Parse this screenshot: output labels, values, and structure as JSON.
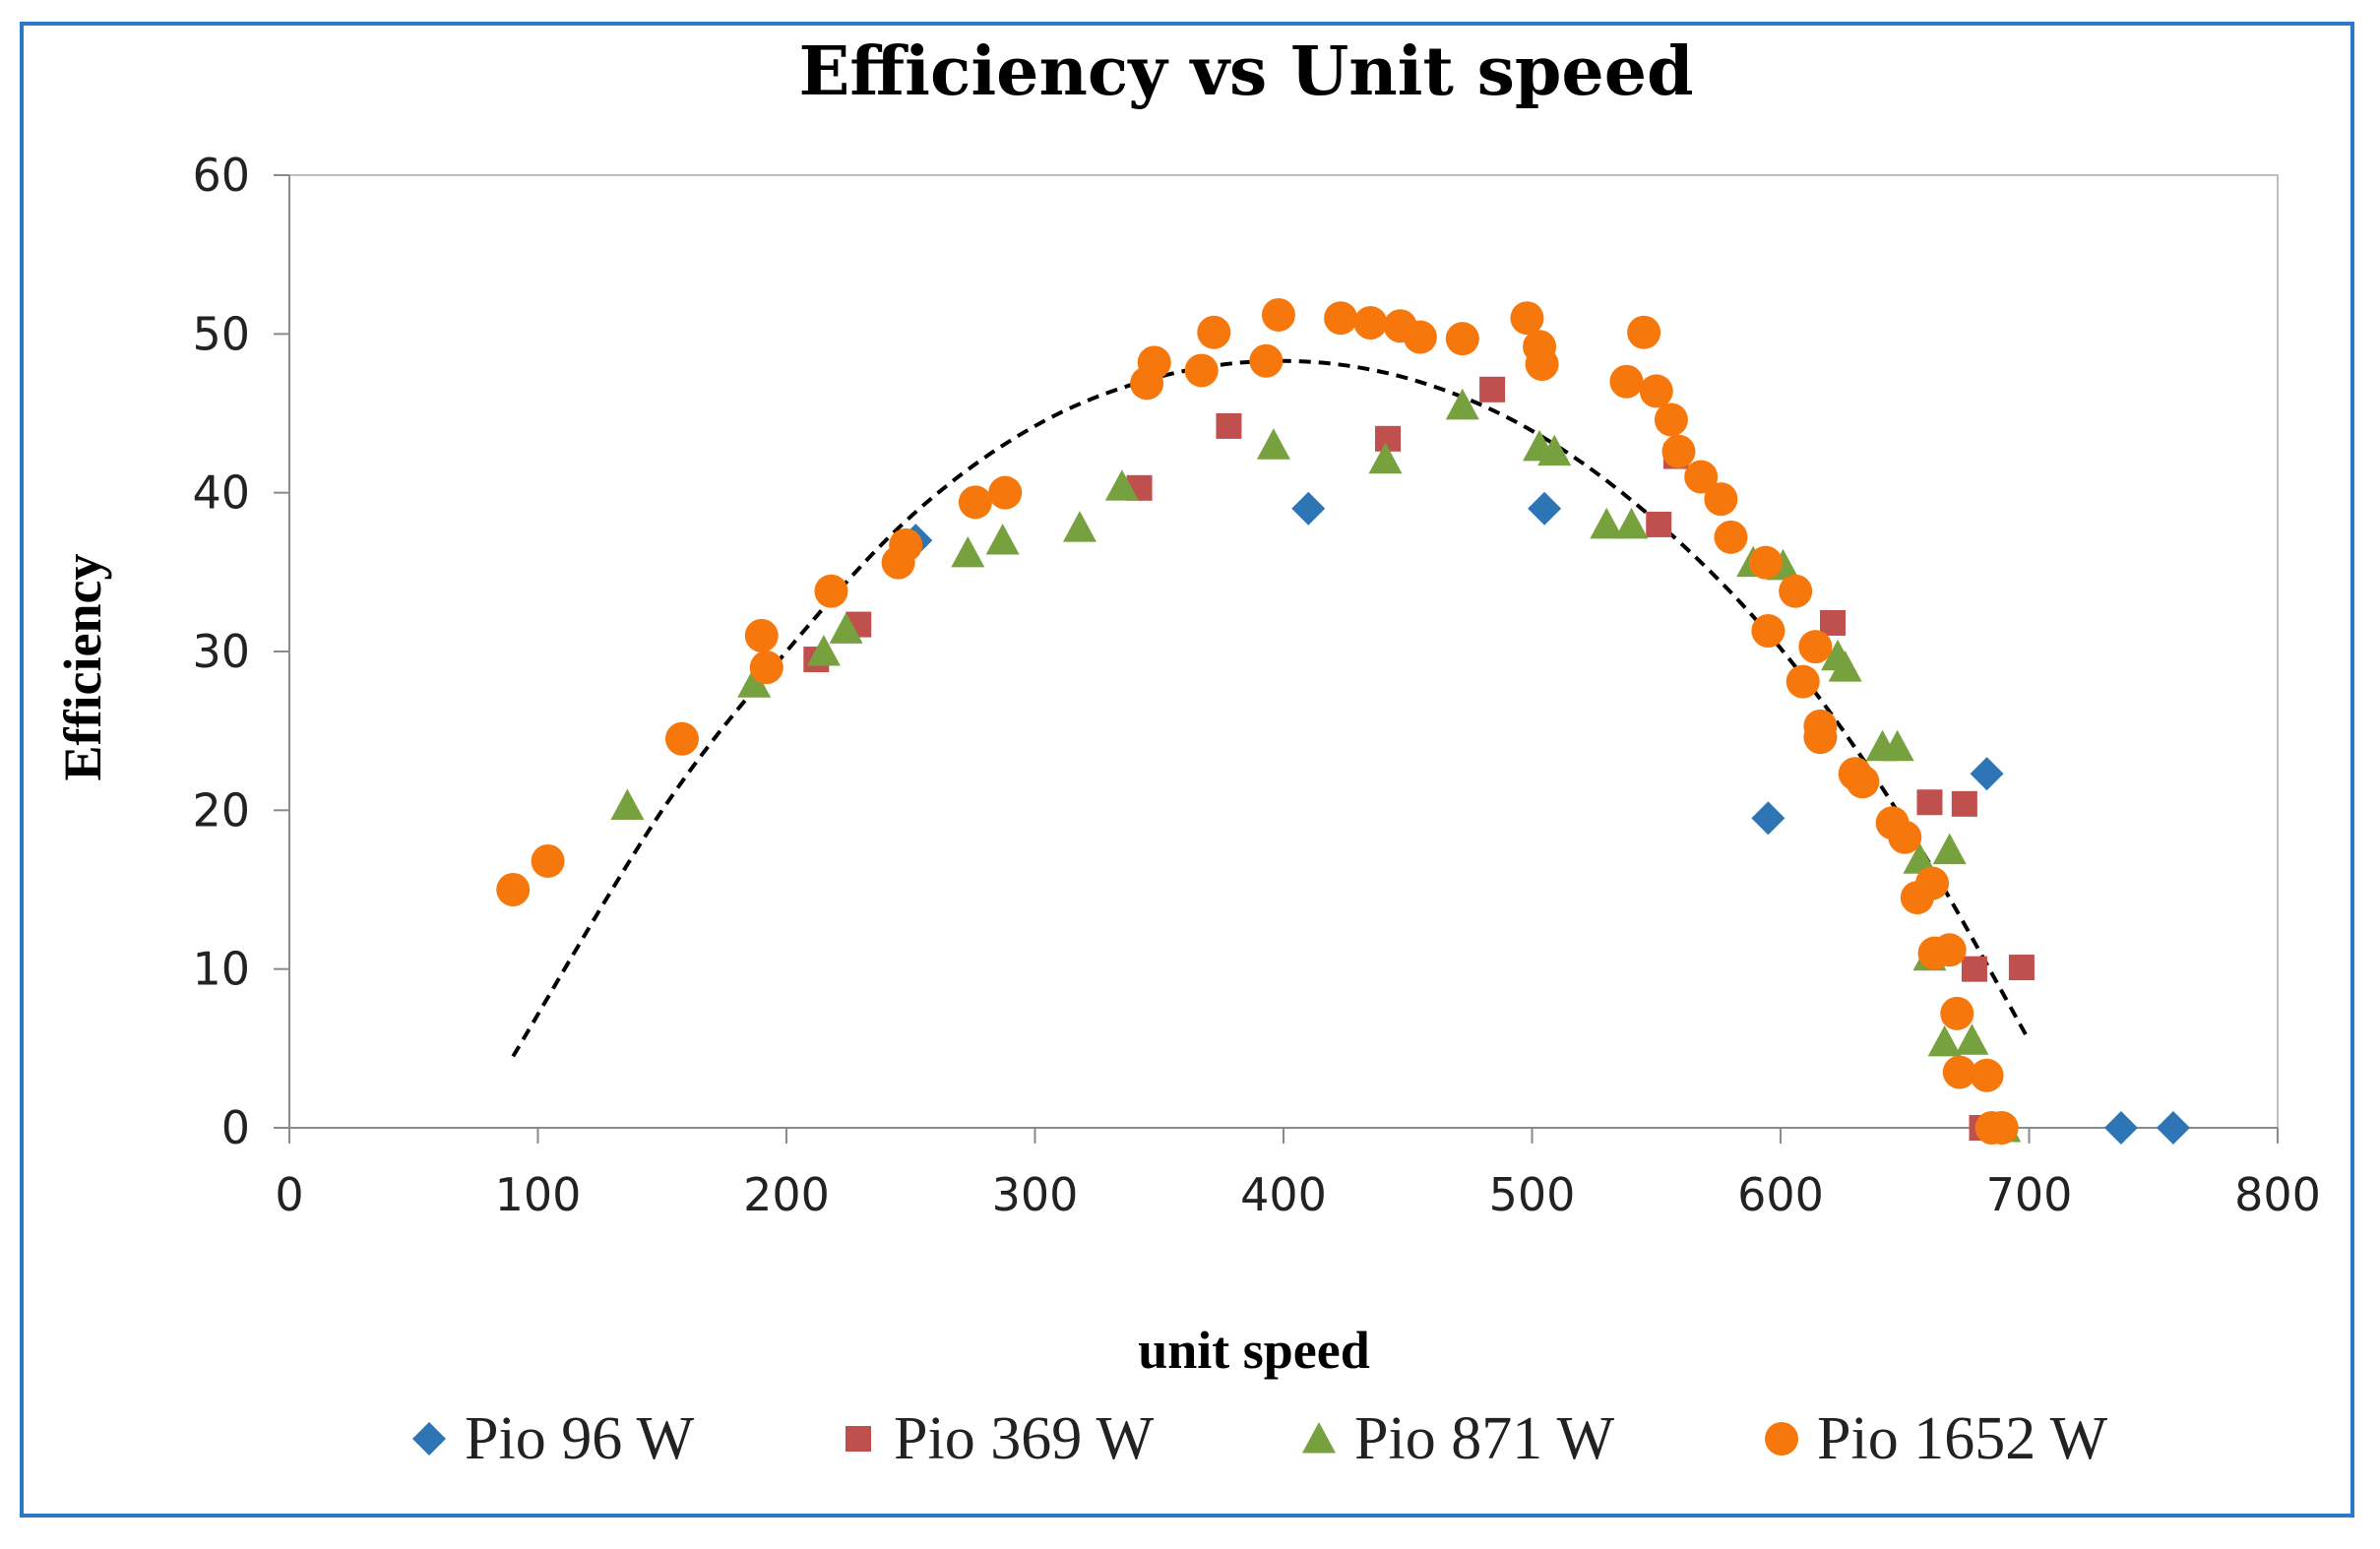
{
  "chart_data": {
    "type": "scatter",
    "title": "Efficiency vs Unit speed",
    "xlabel": "unit speed",
    "ylabel": "Efficiency",
    "xlim": [
      0,
      800
    ],
    "ylim": [
      0,
      60
    ],
    "xticks": [
      0,
      100,
      200,
      300,
      400,
      500,
      600,
      700,
      800
    ],
    "yticks": [
      0,
      10,
      20,
      30,
      40,
      50,
      60
    ],
    "grid": false,
    "legend_position": "bottom",
    "series": [
      {
        "name": "Pio 96 W",
        "marker": "diamond",
        "color": "#2e75b6",
        "points": [
          [
            252,
            37
          ],
          [
            410,
            39
          ],
          [
            505,
            39
          ],
          [
            595,
            19.5
          ],
          [
            683,
            22.3
          ],
          [
            737,
            0
          ],
          [
            758,
            0
          ]
        ]
      },
      {
        "name": "Pio 369 W",
        "marker": "square",
        "color": "#c0504d",
        "points": [
          [
            212,
            29.5
          ],
          [
            229,
            31.7
          ],
          [
            342,
            40.3
          ],
          [
            378,
            44.2
          ],
          [
            442,
            43.4
          ],
          [
            484,
            46.5
          ],
          [
            551,
            38
          ],
          [
            558,
            42.3
          ],
          [
            621,
            31.8
          ],
          [
            660,
            20.5
          ],
          [
            674,
            20.4
          ],
          [
            678,
            10
          ],
          [
            681,
            0
          ],
          [
            687,
            0
          ],
          [
            697,
            10.1
          ]
        ]
      },
      {
        "name": "Pio 871 W",
        "marker": "triangle",
        "color": "#77a03e",
        "points": [
          [
            136,
            20.3
          ],
          [
            187,
            28
          ],
          [
            215,
            30
          ],
          [
            224,
            31.4
          ],
          [
            273,
            36.2
          ],
          [
            287,
            37
          ],
          [
            318,
            37.8
          ],
          [
            335,
            40.4
          ],
          [
            396,
            43
          ],
          [
            441,
            42.1
          ],
          [
            472,
            45.5
          ],
          [
            503,
            42.9
          ],
          [
            509,
            42.6
          ],
          [
            530,
            38
          ],
          [
            540,
            38
          ],
          [
            589,
            35.6
          ],
          [
            601,
            35.4
          ],
          [
            623,
            29.7
          ],
          [
            626,
            29
          ],
          [
            641,
            24
          ],
          [
            647,
            24
          ],
          [
            656,
            16.9
          ],
          [
            660,
            10.8
          ],
          [
            666,
            5.4
          ],
          [
            668,
            17.5
          ],
          [
            677,
            5.5
          ],
          [
            690,
            0
          ]
        ]
      },
      {
        "name": "Pio 1652 W",
        "marker": "circle",
        "color": "#f6780c",
        "points": [
          [
            90,
            15
          ],
          [
            104,
            16.8
          ],
          [
            158,
            24.5
          ],
          [
            190,
            31
          ],
          [
            192,
            29
          ],
          [
            218,
            33.8
          ],
          [
            245,
            35.6
          ],
          [
            248,
            36.7
          ],
          [
            276,
            39.4
          ],
          [
            288,
            40
          ],
          [
            345,
            46.9
          ],
          [
            348,
            48.2
          ],
          [
            367,
            47.7
          ],
          [
            372,
            50.1
          ],
          [
            393,
            48.3
          ],
          [
            398,
            51.2
          ],
          [
            423,
            51
          ],
          [
            435,
            50.7
          ],
          [
            447,
            50.5
          ],
          [
            455,
            49.8
          ],
          [
            472,
            49.7
          ],
          [
            498,
            51
          ],
          [
            503,
            49.2
          ],
          [
            504,
            48.1
          ],
          [
            538,
            47
          ],
          [
            545,
            50.1
          ],
          [
            550,
            46.4
          ],
          [
            556,
            44.6
          ],
          [
            559,
            42.6
          ],
          [
            568,
            41
          ],
          [
            576,
            39.6
          ],
          [
            580,
            37.2
          ],
          [
            594,
            35.6
          ],
          [
            595,
            31.3
          ],
          [
            606,
            33.8
          ],
          [
            609,
            28.1
          ],
          [
            614,
            30.3
          ],
          [
            616,
            25.3
          ],
          [
            616,
            24.6
          ],
          [
            630,
            22.3
          ],
          [
            633,
            21.8
          ],
          [
            645,
            19.2
          ],
          [
            650,
            18.3
          ],
          [
            655,
            14.5
          ],
          [
            661,
            15.4
          ],
          [
            662,
            11
          ],
          [
            668,
            11.2
          ],
          [
            671,
            7.2
          ],
          [
            672,
            3.5
          ],
          [
            683,
            3.3
          ],
          [
            685,
            0
          ],
          [
            689,
            0
          ]
        ]
      }
    ],
    "trendline": {
      "style": "dashed",
      "color": "#000000",
      "type": "polynomial",
      "x_range": [
        90,
        700
      ],
      "points": [
        [
          90,
          4.5
        ],
        [
          150,
          20
        ],
        [
          200,
          30
        ],
        [
          250,
          38.5
        ],
        [
          300,
          44.2
        ],
        [
          350,
          47.3
        ],
        [
          400,
          48.3
        ],
        [
          450,
          47.2
        ],
        [
          500,
          43.9
        ],
        [
          550,
          38.2
        ],
        [
          600,
          30.2
        ],
        [
          650,
          19.2
        ],
        [
          700,
          5.5
        ]
      ]
    }
  }
}
